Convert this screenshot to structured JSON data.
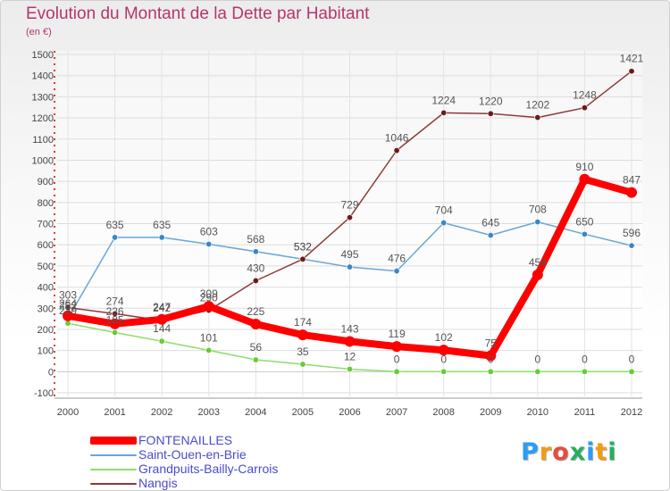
{
  "title": "Evolution du Montant de la Dette par Habitant",
  "subtitle": "(en €)",
  "logo": {
    "letters": [
      "P",
      "r",
      "o",
      "x",
      "i",
      "t",
      "i"
    ],
    "colors": [
      "#2a9df4",
      "#f39c12",
      "#e74c3c",
      "#27ae60",
      "#2a9df4",
      "#f39c12",
      "#27ae60"
    ]
  },
  "chart_data": {
    "type": "line",
    "x": [
      "2000",
      "2001",
      "2002",
      "2003",
      "2004",
      "2005",
      "2006",
      "2007",
      "2008",
      "2009",
      "2010",
      "2011",
      "2012"
    ],
    "ylim": [
      -100,
      1500
    ],
    "yticks": [
      -100,
      0,
      100,
      200,
      300,
      400,
      500,
      600,
      700,
      800,
      900,
      1000,
      1100,
      1200,
      1300,
      1400,
      1500
    ],
    "grid": true,
    "legend_position": "bottom-left",
    "series": [
      {
        "name": "FONTENAILLES",
        "values": [
          264,
          226,
          247,
          309,
          225,
          174,
          143,
          119,
          102,
          75,
          458,
          910,
          847
        ],
        "color": "#ff0000",
        "dot": "#ff0000",
        "emphasis": true
      },
      {
        "name": "Saint-Ouen-en-Brie",
        "values": [
          252,
          635,
          635,
          603,
          568,
          532,
          495,
          476,
          704,
          645,
          708,
          650,
          596
        ],
        "color": "#6aa6d6",
        "dot": "#3b87c8",
        "emphasis": false
      },
      {
        "name": "Grandpuits-Bailly-Carrois",
        "values": [
          229,
          185,
          144,
          101,
          56,
          35,
          12,
          0,
          0,
          0,
          0,
          0,
          0
        ],
        "color": "#8fdc6a",
        "dot": "#66cc33",
        "emphasis": false
      },
      {
        "name": "Nangis",
        "values": [
          303,
          274,
          242,
          290,
          430,
          532,
          729,
          1046,
          1224,
          1220,
          1202,
          1248,
          1421
        ],
        "color": "#8c3a3a",
        "dot": "#6b1a1a",
        "emphasis": false
      }
    ],
    "data_labels": [
      [
        "264",
        "226",
        "247",
        "309",
        "225",
        "174",
        "143",
        "119",
        "102",
        "75",
        "458",
        "910",
        "847"
      ],
      [
        "252",
        "635",
        "635",
        "603",
        "568",
        "532",
        "495",
        "476",
        "704",
        "645",
        "708",
        "650",
        "596"
      ],
      [
        "229",
        "185",
        "144",
        "101",
        "56",
        "35",
        "12",
        "0",
        "0",
        "0",
        "0",
        "0",
        "0"
      ],
      [
        "303",
        "274",
        "242",
        "290",
        "430",
        "532",
        "729",
        "1046",
        "1224",
        "1220",
        "1202",
        "1248",
        "1421"
      ]
    ]
  }
}
